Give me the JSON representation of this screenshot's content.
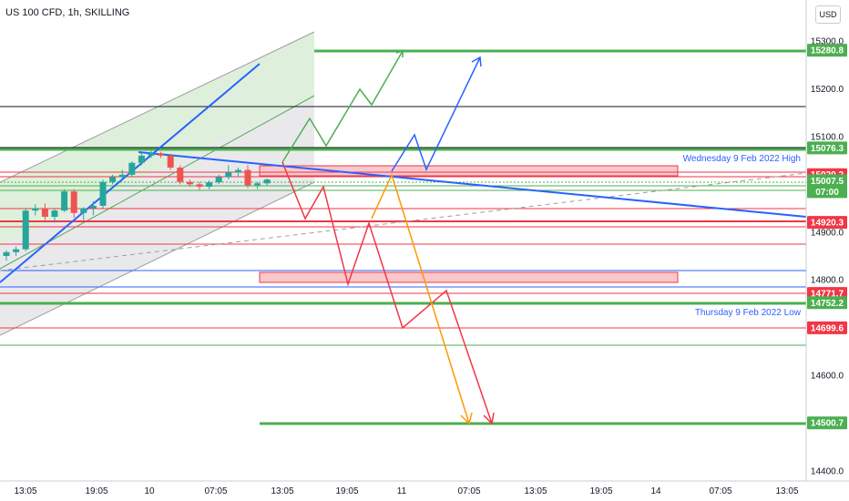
{
  "header": {
    "symbol_title": "US 100 CFD, 1h, SKILLING",
    "currency": "USD"
  },
  "colors": {
    "up": "#26a69a",
    "down": "#ef5350",
    "green_line": "#4caf50",
    "red_line": "#f23645",
    "blue_line": "#2962ff",
    "orange_line": "#ff9800",
    "black_line": "#131722",
    "channel_fill_green": "#d6ecd2",
    "channel_fill_gray": "#e3e4e7",
    "zone_fill": "#f8c8cc"
  },
  "chart_data": {
    "type": "candlestick",
    "title": "US 100 CFD, 1h, SKILLING",
    "x_tick_labels": [
      "13:05",
      "19:05",
      "10",
      "07:05",
      "13:05",
      "19:05",
      "11",
      "07:05",
      "13:05",
      "19:05",
      "14",
      "07:05",
      "13:05"
    ],
    "y_ticks": [
      15300.0,
      15200.0,
      15100.0,
      14900.0,
      14800.0,
      14600.0,
      14400.0
    ],
    "ylim": [
      14390,
      15340
    ],
    "candles": [
      [
        14850,
        14862,
        14840,
        14858
      ],
      [
        14858,
        14870,
        14850,
        14864
      ],
      [
        14864,
        14950,
        14860,
        14945
      ],
      [
        14945,
        14958,
        14935,
        14950
      ],
      [
        14950,
        14960,
        14925,
        14932
      ],
      [
        14932,
        14948,
        14920,
        14945
      ],
      [
        14945,
        14990,
        14942,
        14985
      ],
      [
        14985,
        14990,
        14930,
        14940
      ],
      [
        14940,
        14952,
        14925,
        14950
      ],
      [
        14950,
        14965,
        14935,
        14955
      ],
      [
        14955,
        15010,
        14950,
        15005
      ],
      [
        15005,
        15020,
        15000,
        15015
      ],
      [
        15015,
        15030,
        15010,
        15020
      ],
      [
        15020,
        15048,
        15015,
        15045
      ],
      [
        15045,
        15065,
        15040,
        15060
      ],
      [
        15060,
        15075,
        15055,
        15065
      ],
      [
        15065,
        15068,
        15055,
        15060
      ],
      [
        15060,
        15063,
        15030,
        15035
      ],
      [
        15035,
        15040,
        15000,
        15005
      ],
      [
        15005,
        15010,
        14995,
        15000
      ],
      [
        15000,
        15005,
        14988,
        14995
      ],
      [
        14995,
        15008,
        14990,
        15004
      ],
      [
        15004,
        15020,
        15000,
        15015
      ],
      [
        15015,
        15040,
        15010,
        15025
      ],
      [
        15025,
        15035,
        15015,
        15030
      ],
      [
        15030,
        15040,
        14992,
        14998
      ],
      [
        14998,
        15005,
        14990,
        15002
      ],
      [
        15002,
        15012,
        14998,
        15010
      ]
    ],
    "horizontal_levels": [
      {
        "price": 15280.8,
        "label": "15280.8",
        "color": "green"
      },
      {
        "price": 15076.3,
        "label": "15076.3",
        "color": "green"
      },
      {
        "price": 15020.2,
        "label": "15020.2",
        "color": "red"
      },
      {
        "price": 15007.5,
        "label": "15007.5",
        "color": "green",
        "sublabel": "07:00"
      },
      {
        "price": 14920.3,
        "label": "14920.3",
        "color": "red"
      },
      {
        "price": 14771.7,
        "label": "14771.7",
        "color": "red"
      },
      {
        "price": 14752.2,
        "label": "14752.2",
        "color": "green"
      },
      {
        "price": 14699.6,
        "label": "14699.6",
        "color": "red"
      },
      {
        "price": 14500.7,
        "label": "14500.7",
        "color": "green"
      }
    ],
    "annotations": [
      {
        "text": "Wednesday 9 Feb 2022 High"
      },
      {
        "text": "Thursday 9 Feb 2022 Low"
      }
    ],
    "legend": "none",
    "grid": false
  }
}
